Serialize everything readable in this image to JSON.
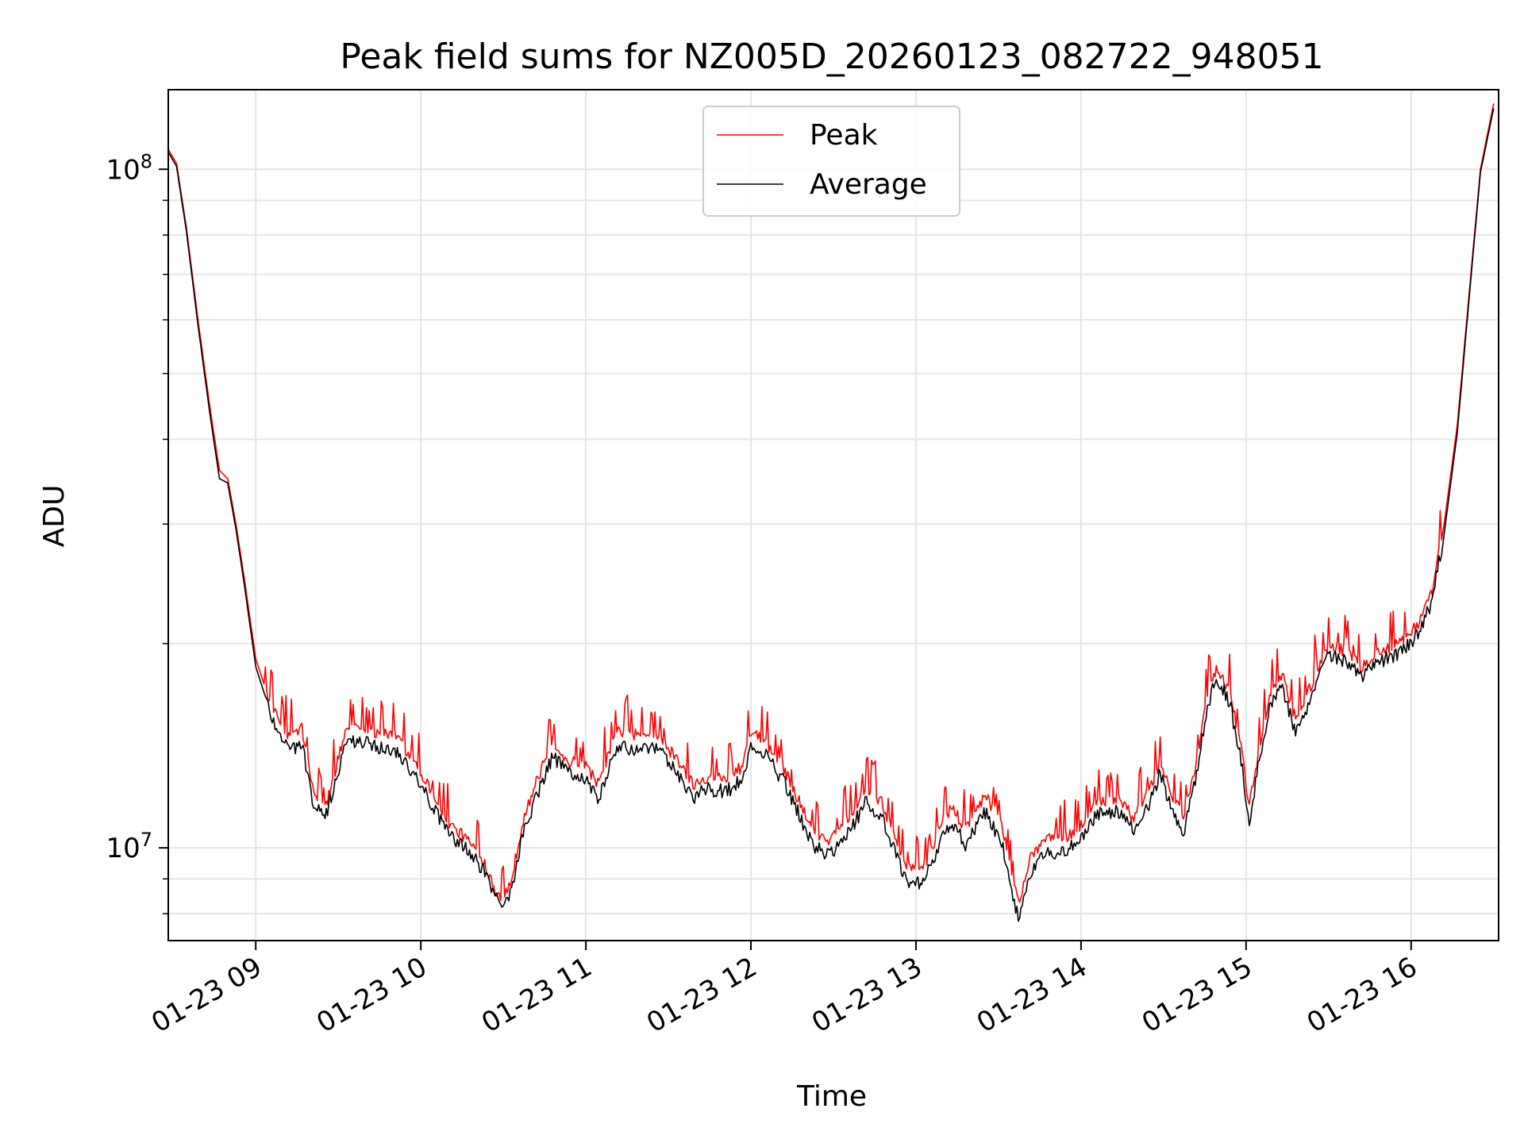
{
  "chart_data": {
    "type": "line",
    "title": "Peak field sums for NZ005D_20260123_082722_948051",
    "xlabel": "Time",
    "ylabel": "ADU",
    "x_ticks": [
      "01-23 09",
      "01-23 10",
      "01-23 11",
      "01-23 12",
      "01-23 13",
      "01-23 14",
      "01-23 15",
      "01-23 16"
    ],
    "x_tick_hours": [
      9,
      10,
      11,
      12,
      13,
      14,
      15,
      16
    ],
    "xlim_hours": [
      8.47,
      16.53
    ],
    "y_scale": "log",
    "ylim": [
      7300000,
      131000000
    ],
    "y_major_ticks": [
      {
        "value": 10000000,
        "base": "10",
        "exp": "7"
      },
      {
        "value": 100000000,
        "base": "10",
        "exp": "8"
      }
    ],
    "grid": true,
    "legend_position": "top-center",
    "series": [
      {
        "name": "Peak",
        "color": "#ff0000",
        "hours": [
          8.47,
          8.52,
          8.58,
          8.65,
          8.72,
          8.78,
          8.83,
          8.88,
          8.93,
          9.0,
          9.1,
          9.2,
          9.28,
          9.35,
          9.42,
          9.48,
          9.55,
          9.63,
          9.72,
          9.85,
          9.98,
          10.08,
          10.18,
          10.28,
          10.38,
          10.45,
          10.5,
          10.55,
          10.62,
          10.7,
          10.8,
          10.9,
          11.0,
          11.08,
          11.18,
          11.3,
          11.45,
          11.55,
          11.65,
          11.75,
          11.85,
          11.95,
          12.0,
          12.1,
          12.2,
          12.3,
          12.38,
          12.48,
          12.58,
          12.7,
          12.8,
          12.88,
          12.95,
          13.05,
          13.15,
          13.22,
          13.3,
          13.42,
          13.52,
          13.58,
          13.62,
          13.7,
          13.8,
          13.9,
          14.0,
          14.1,
          14.22,
          14.32,
          14.42,
          14.48,
          14.55,
          14.62,
          14.7,
          14.75,
          14.82,
          14.9,
          14.97,
          15.02,
          15.08,
          15.15,
          15.22,
          15.3,
          15.4,
          15.5,
          15.6,
          15.7,
          15.8,
          15.9,
          15.97,
          16.05,
          16.12,
          16.2,
          16.28,
          16.35,
          16.42,
          16.5
        ],
        "values": [
          107000000,
          102000000,
          82000000,
          60000000,
          45000000,
          36000000,
          35000000,
          30000000,
          25000000,
          19000000,
          16000000,
          14500000,
          15000000,
          12000000,
          11400000,
          13000000,
          15000000,
          15200000,
          14800000,
          14600000,
          13200000,
          11900000,
          10800000,
          10300000,
          9600000,
          8700000,
          8400000,
          9000000,
          11000000,
          12500000,
          14300000,
          13400000,
          13200000,
          12400000,
          14800000,
          14700000,
          14500000,
          13500000,
          12400000,
          12800000,
          12600000,
          13200000,
          14800000,
          14200000,
          13100000,
          11600000,
          10500000,
          10300000,
          11000000,
          12300000,
          11600000,
          10200000,
          9300000,
          9400000,
          10800000,
          11500000,
          10600000,
          12000000,
          10800000,
          9200000,
          8300000,
          9800000,
          10400000,
          10300000,
          10800000,
          11700000,
          11800000,
          11100000,
          12200000,
          13400000,
          12000000,
          11000000,
          13500000,
          16000000,
          18500000,
          17000000,
          14000000,
          11500000,
          14000000,
          17000000,
          18000000,
          15500000,
          17500000,
          20000000,
          19500000,
          18500000,
          19500000,
          19800000,
          20500000,
          21500000,
          23500000,
          30000000,
          42000000,
          65000000,
          100000000,
          125000000
        ]
      },
      {
        "name": "Average",
        "color": "#000000",
        "hours": [
          8.47,
          8.52,
          8.58,
          8.65,
          8.72,
          8.78,
          8.83,
          8.88,
          8.93,
          9.0,
          9.1,
          9.2,
          9.28,
          9.35,
          9.42,
          9.48,
          9.55,
          9.63,
          9.72,
          9.85,
          9.98,
          10.08,
          10.18,
          10.28,
          10.38,
          10.45,
          10.5,
          10.55,
          10.62,
          10.7,
          10.8,
          10.9,
          11.0,
          11.08,
          11.18,
          11.3,
          11.45,
          11.55,
          11.65,
          11.75,
          11.85,
          11.95,
          12.0,
          12.1,
          12.2,
          12.3,
          12.38,
          12.48,
          12.58,
          12.7,
          12.8,
          12.88,
          12.95,
          13.05,
          13.15,
          13.22,
          13.3,
          13.42,
          13.52,
          13.58,
          13.62,
          13.7,
          13.8,
          13.9,
          14.0,
          14.1,
          14.22,
          14.32,
          14.42,
          14.48,
          14.55,
          14.62,
          14.7,
          14.75,
          14.82,
          14.9,
          14.97,
          15.02,
          15.08,
          15.15,
          15.22,
          15.3,
          15.4,
          15.5,
          15.6,
          15.7,
          15.8,
          15.9,
          15.97,
          16.05,
          16.12,
          16.2,
          16.28,
          16.35,
          16.42,
          16.5
        ],
        "values": [
          106000000,
          101000000,
          81000000,
          59000000,
          44000000,
          35000000,
          34500000,
          29500000,
          24500000,
          18500000,
          15500000,
          14000000,
          14200000,
          11600000,
          11000000,
          12500000,
          14300000,
          14400000,
          14100000,
          13900000,
          12700000,
          11400000,
          10400000,
          9900000,
          9300000,
          8500000,
          8200000,
          8700000,
          10500000,
          11900000,
          13600000,
          12900000,
          12600000,
          11800000,
          14000000,
          14000000,
          13900000,
          12900000,
          11900000,
          12200000,
          12100000,
          12600000,
          14100000,
          13600000,
          12500000,
          11100000,
          10000000,
          9800000,
          10400000,
          11700000,
          11000000,
          9700000,
          8800000,
          8900000,
          10200000,
          10900000,
          10100000,
          11300000,
          10200000,
          8600000,
          7900000,
          9300000,
          9900000,
          9800000,
          10300000,
          11200000,
          11300000,
          10600000,
          11700000,
          12900000,
          11400000,
          10400000,
          12900000,
          15400000,
          18000000,
          16400000,
          13400000,
          11000000,
          13400000,
          16400000,
          17300000,
          14800000,
          16800000,
          19300000,
          18800000,
          17800000,
          18800000,
          19200000,
          19800000,
          20800000,
          22800000,
          29000000,
          41000000,
          64000000,
          99000000,
          123000000
        ]
      }
    ]
  }
}
